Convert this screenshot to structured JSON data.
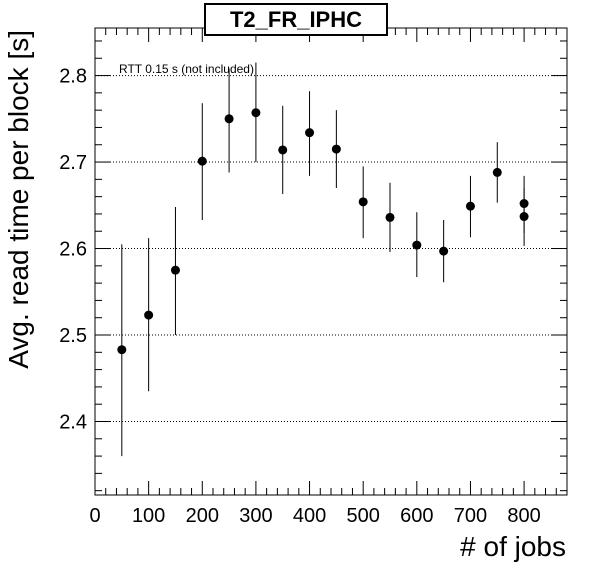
{
  "chart_data": {
    "type": "scatter",
    "title": "T2_FR_IPHC",
    "xlabel": "# of jobs",
    "ylabel": "Avg. read time per block [s]",
    "annotation": "RTT 0.15 s (not included)",
    "xlim": [
      0,
      880
    ],
    "ylim": [
      2.315,
      2.855
    ],
    "x_ticks": [
      0,
      100,
      200,
      300,
      400,
      500,
      600,
      700,
      800
    ],
    "y_ticks": [
      2.4,
      2.5,
      2.6,
      2.7,
      2.8
    ],
    "y_tick_labels": [
      "2.4",
      "2.5",
      "2.6",
      "2.7",
      "2.8"
    ],
    "grid": "horizontal dotted",
    "series": [
      {
        "marker_color": "#000000",
        "points": [
          {
            "x": 50,
            "y": 2.483,
            "err_lo": 2.36,
            "err_hi": 2.605
          },
          {
            "x": 100,
            "y": 2.523,
            "err_lo": 2.435,
            "err_hi": 2.612
          },
          {
            "x": 150,
            "y": 2.575,
            "err_lo": 2.5,
            "err_hi": 2.648
          },
          {
            "x": 200,
            "y": 2.701,
            "err_lo": 2.633,
            "err_hi": 2.768
          },
          {
            "x": 250,
            "y": 2.75,
            "err_lo": 2.688,
            "err_hi": 2.808
          },
          {
            "x": 300,
            "y": 2.757,
            "err_lo": 2.7,
            "err_hi": 2.815
          },
          {
            "x": 350,
            "y": 2.714,
            "err_lo": 2.663,
            "err_hi": 2.765
          },
          {
            "x": 400,
            "y": 2.734,
            "err_lo": 2.684,
            "err_hi": 2.782
          },
          {
            "x": 450,
            "y": 2.715,
            "err_lo": 2.67,
            "err_hi": 2.76
          },
          {
            "x": 500,
            "y": 2.654,
            "err_lo": 2.612,
            "err_hi": 2.695
          },
          {
            "x": 550,
            "y": 2.636,
            "err_lo": 2.596,
            "err_hi": 2.676
          },
          {
            "x": 600,
            "y": 2.604,
            "err_lo": 2.567,
            "err_hi": 2.642
          },
          {
            "x": 650,
            "y": 2.597,
            "err_lo": 2.561,
            "err_hi": 2.633
          },
          {
            "x": 700,
            "y": 2.649,
            "err_lo": 2.613,
            "err_hi": 2.684
          },
          {
            "x": 750,
            "y": 2.688,
            "err_lo": 2.653,
            "err_hi": 2.723
          },
          {
            "x": 800,
            "y": 2.652,
            "err_lo": 2.618,
            "err_hi": 2.684
          },
          {
            "x": 800,
            "y": 2.637,
            "err_lo": 2.603,
            "err_hi": 2.67
          }
        ]
      }
    ]
  }
}
